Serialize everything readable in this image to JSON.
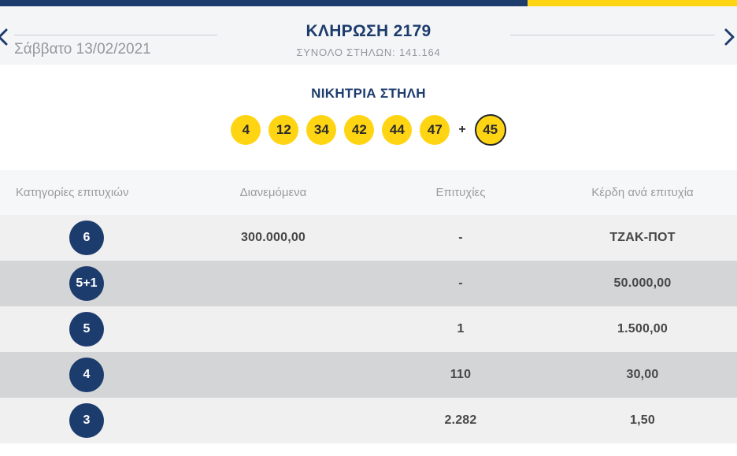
{
  "colors": {
    "navy": "#1d3c6e",
    "yellow": "#ffd412",
    "band-bg": "#f4f5f6",
    "rule": "#c9ced6",
    "gray-text": "#94979b",
    "ball-num": "#2b2b2b",
    "ball-border": "#23262b",
    "thead-bg": "#f6f7f8",
    "th-text": "#9b9b9b",
    "row-light": "#f0f0f1",
    "row-dark": "#d4d5d6",
    "val-text": "#474747"
  },
  "header": {
    "date": "Σάββατο 13/02/2021",
    "title": "ΚΛΗΡΩΣΗ 2179",
    "total_columns": "ΣΥΝΟΛΟ ΣΤΗΛΩΝ: 141.164"
  },
  "winning": {
    "title": "ΝΙΚΗΤΡΙΑ ΣΤΗΛΗ",
    "numbers": [
      "4",
      "12",
      "34",
      "42",
      "44",
      "47"
    ],
    "plus": "+",
    "bonus": "45"
  },
  "table": {
    "headers": [
      "Κατηγορίες επιτυχιών",
      "Διανεμόμενα",
      "Επιτυχίες",
      "Κέρδη ανά επιτυχία"
    ],
    "rows": [
      {
        "category": "6",
        "distributed": "300.000,00",
        "winners": "-",
        "prize": "ΤΖΑΚ-ΠΟΤ"
      },
      {
        "category": "5+1",
        "distributed": "",
        "winners": "-",
        "prize": "50.000,00"
      },
      {
        "category": "5",
        "distributed": "",
        "winners": "1",
        "prize": "1.500,00"
      },
      {
        "category": "4",
        "distributed": "",
        "winners": "110",
        "prize": "30,00"
      },
      {
        "category": "3",
        "distributed": "",
        "winners": "2.282",
        "prize": "1,50"
      }
    ]
  }
}
